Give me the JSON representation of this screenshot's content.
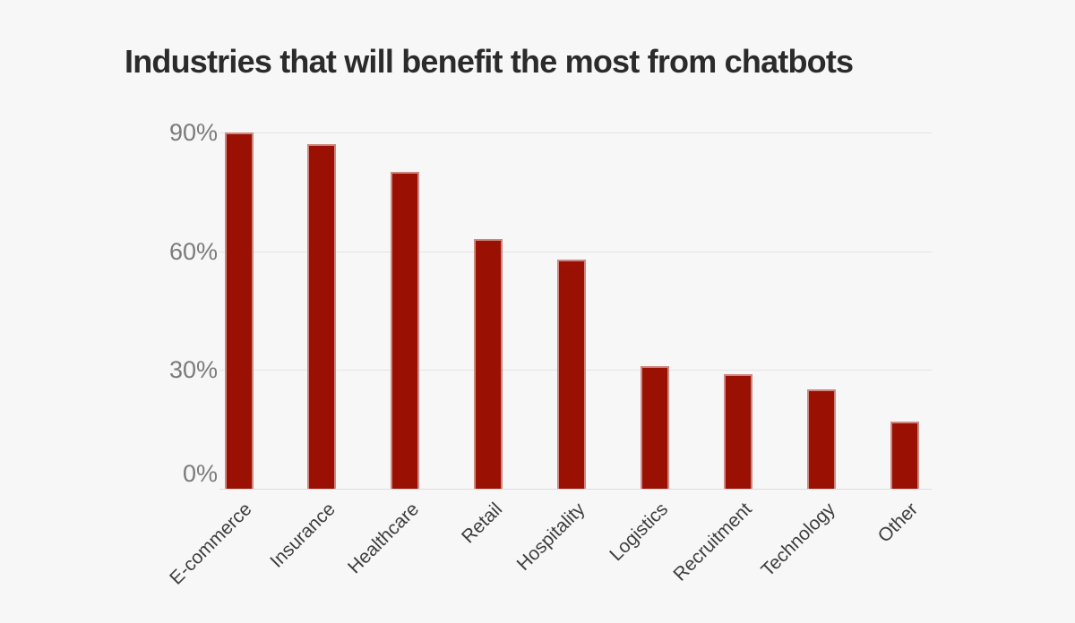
{
  "title": "Industries that will benefit the most from chatbots",
  "chart_data": {
    "type": "bar",
    "title": "Industries that will benefit the most from chatbots",
    "categories": [
      "E-commerce",
      "Insurance",
      "Healthcare",
      "Retail",
      "Hospitality",
      "Logistics",
      "Recruitment",
      "Technology",
      "Other"
    ],
    "values": [
      90,
      87,
      80,
      63,
      58,
      31,
      29,
      25,
      17
    ],
    "xlabel": "",
    "ylabel": "",
    "y_ticks": [
      {
        "value": 90,
        "label": "90%"
      },
      {
        "value": 60,
        "label": "60%"
      },
      {
        "value": 30,
        "label": "30%"
      },
      {
        "value": 0,
        "label": "0%"
      }
    ],
    "ylim": [
      0,
      94
    ],
    "grid": true,
    "legend": "none",
    "bar_color": "#9a1104",
    "bar_border_color": "rgba(255,255,255,0.5)",
    "background_color": "#f7f7f7",
    "gridline_color": "#e4e4e4",
    "title_color": "#2b2b2b",
    "ytick_color": "#7b7b7b",
    "xtick_color": "#3d3d3d"
  }
}
